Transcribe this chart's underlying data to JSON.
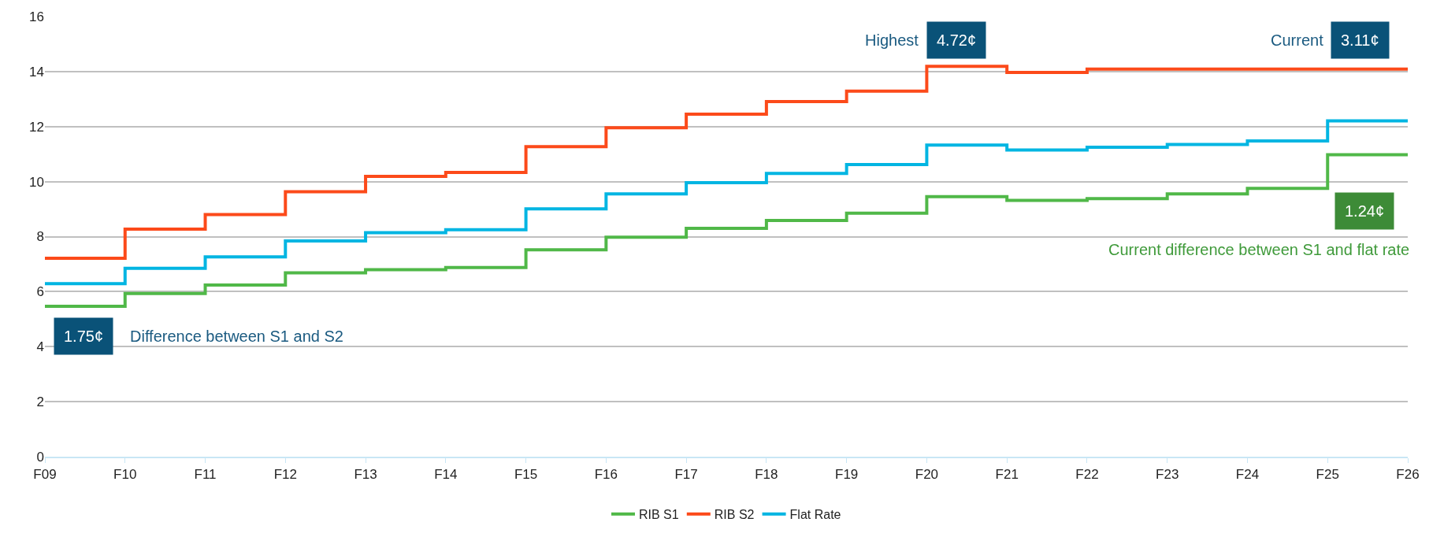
{
  "chart_data": {
    "type": "step",
    "categories": [
      "F09",
      "F10",
      "F11",
      "F12",
      "F13",
      "F14",
      "F15",
      "F16",
      "F17",
      "F18",
      "F19",
      "F20",
      "F21",
      "F22",
      "F23",
      "F24",
      "F25",
      "F26"
    ],
    "series": [
      {
        "name": "RIB S1",
        "color": "#50b848",
        "values": [
          5.47,
          5.93,
          6.24,
          6.68,
          6.8,
          6.88,
          7.52,
          7.98,
          8.3,
          8.59,
          8.85,
          9.45,
          9.32,
          9.38,
          9.55,
          9.75,
          10.98,
          10.98
        ]
      },
      {
        "name": "RIB S2",
        "color": "#fc4a1a",
        "values": [
          7.21,
          8.27,
          8.8,
          9.63,
          10.19,
          10.33,
          11.27,
          11.96,
          12.45,
          12.91,
          13.29,
          14.19,
          13.97,
          14.09,
          14.09,
          14.09,
          14.09,
          14.09
        ]
      },
      {
        "name": "Flat Rate",
        "color": "#00b5e2",
        "values": [
          6.29,
          6.85,
          7.26,
          7.84,
          8.14,
          8.25,
          9.01,
          9.55,
          9.96,
          10.3,
          10.62,
          11.33,
          11.15,
          11.25,
          11.35,
          11.48,
          12.21,
          12.21
        ]
      }
    ],
    "ylim": [
      0,
      16
    ],
    "yticks": [
      0,
      2,
      4,
      6,
      8,
      10,
      12,
      14,
      16
    ],
    "grid": "y",
    "legend": "bottom",
    "marker": "none",
    "line_style": "solid",
    "annotations": [
      "1.75¢",
      "Difference between S1 and S2",
      "Highest",
      "4.72¢",
      "Current",
      "3.11¢",
      "1.24¢",
      "Current difference between S1 and flat rate"
    ]
  }
}
